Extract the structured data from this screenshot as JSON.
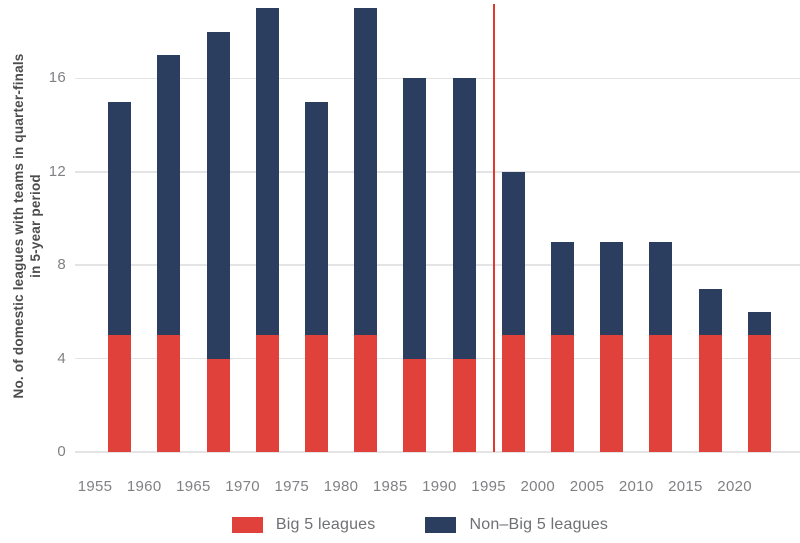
{
  "chart_data": {
    "type": "bar",
    "stacked": true,
    "categories": [
      "1955",
      "1960",
      "1965",
      "1970",
      "1975",
      "1980",
      "1985",
      "1990",
      "1995",
      "2000",
      "2005",
      "2010",
      "2015",
      "2020"
    ],
    "series": [
      {
        "name": "Big 5 leagues",
        "color": "#e0413a",
        "values": [
          5,
          5,
          4,
          5,
          5,
          5,
          4,
          4,
          5,
          5,
          5,
          5,
          5,
          5
        ]
      },
      {
        "name": "Non–Big 5 leagues",
        "color": "#2b3e5f",
        "values": [
          10,
          12,
          14,
          14,
          10,
          14,
          12,
          12,
          7,
          4,
          4,
          4,
          2,
          1
        ]
      }
    ],
    "totals": [
      15,
      17,
      18,
      19,
      15,
      19,
      16,
      16,
      12,
      9,
      9,
      9,
      7,
      6
    ],
    "ylabel_line1": "No. of domestic leagues with teams in quarter-finals",
    "ylabel_line2": "in 5-year period",
    "yticks": [
      0,
      4,
      8,
      12,
      16
    ],
    "ylim": [
      0,
      19.4
    ],
    "grid": true,
    "legend_position": "bottom",
    "vline": {
      "x": "1995",
      "color": "#e2382e"
    },
    "colors": {
      "grid": "#e4e4e6",
      "tick_text": "#808184",
      "axis_title": "#4b4c4e",
      "legend_text": "#6f7073"
    }
  }
}
